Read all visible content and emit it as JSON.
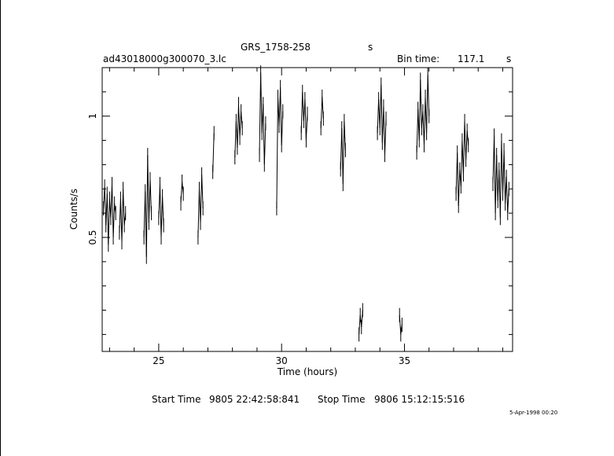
{
  "header": {
    "object": "GRS_1758-258",
    "object_unit": "s",
    "file": "ad43018000g300070_3.lc",
    "bin_label": "Bin time:",
    "bin_value": "117.1",
    "bin_unit": "s"
  },
  "footer": {
    "start_label": "Start Time",
    "start_value": "9805 22:42:58:841",
    "stop_label": "Stop Time",
    "stop_value": "9806 15:12:15:516",
    "stamp": "5-Apr-1998 00:20"
  },
  "chart_data": {
    "type": "line",
    "xlabel": "Time (hours)",
    "ylabel": "Counts/s",
    "xlim": [
      22.7,
      39.4
    ],
    "ylim": [
      0.03,
      1.2
    ],
    "x_ticks": [
      25,
      30,
      35
    ],
    "y_ticks": [
      0.5,
      1
    ],
    "series": [
      {
        "segments": [
          {
            "x": [
              22.75,
              22.8,
              22.85,
              22.9,
              22.95,
              23.0,
              23.05,
              23.1,
              23.15,
              23.2,
              23.25
            ],
            "y": [
              0.62,
              0.71,
              0.55,
              0.68,
              0.47,
              0.66,
              0.58,
              0.72,
              0.5,
              0.64,
              0.6
            ]
          },
          {
            "x": [
              23.4,
              23.45,
              23.5,
              23.55,
              23.6,
              23.65
            ],
            "y": [
              0.52,
              0.66,
              0.48,
              0.7,
              0.55,
              0.6
            ]
          },
          {
            "x": [
              24.4,
              24.45,
              24.5,
              24.55,
              24.6,
              24.65,
              24.7
            ],
            "y": [
              0.5,
              0.69,
              0.42,
              0.84,
              0.56,
              0.74,
              0.6
            ]
          },
          {
            "x": [
              25.0,
              25.05,
              25.1,
              25.15,
              25.2
            ],
            "y": [
              0.58,
              0.72,
              0.5,
              0.67,
              0.55
            ]
          },
          {
            "x": [
              25.9,
              25.95,
              26.0
            ],
            "y": [
              0.64,
              0.73,
              0.68
            ]
          },
          {
            "x": [
              26.6,
              26.65,
              26.7,
              26.75,
              26.8
            ],
            "y": [
              0.5,
              0.7,
              0.56,
              0.76,
              0.62
            ]
          },
          {
            "x": [
              27.2,
              27.25
            ],
            "y": [
              0.77,
              0.93
            ]
          },
          {
            "x": [
              28.1,
              28.15,
              28.2,
              28.25,
              28.3,
              28.35,
              28.4
            ],
            "y": [
              0.83,
              0.98,
              0.87,
              1.05,
              0.91,
              1.02,
              0.95
            ]
          },
          {
            "x": [
              29.1,
              29.15,
              29.2,
              29.25,
              29.3,
              29.35
            ],
            "y": [
              0.84,
              1.18,
              0.93,
              1.05,
              0.8,
              0.97
            ]
          },
          {
            "x": [
              29.8,
              29.85,
              29.9,
              29.95,
              30.0,
              30.05
            ],
            "y": [
              0.62,
              1.08,
              0.96,
              1.12,
              0.88,
              1.02
            ]
          },
          {
            "x": [
              30.8,
              30.85,
              30.9,
              30.95,
              31.0,
              31.05
            ],
            "y": [
              0.93,
              1.1,
              0.98,
              1.07,
              0.9,
              1.01
            ]
          },
          {
            "x": [
              31.6,
              31.65,
              31.7
            ],
            "y": [
              0.95,
              1.08,
              0.99
            ]
          },
          {
            "x": [
              32.4,
              32.45,
              32.5,
              32.55,
              32.6
            ],
            "y": [
              0.78,
              0.95,
              0.72,
              0.98,
              0.86
            ]
          },
          {
            "x": [
              33.15,
              33.2,
              33.25,
              33.3
            ],
            "y": [
              0.1,
              0.18,
              0.13,
              0.2
            ]
          },
          {
            "x": [
              33.9,
              33.95,
              34.0,
              34.05,
              34.1,
              34.15,
              34.2,
              34.25
            ],
            "y": [
              0.93,
              1.07,
              0.95,
              1.13,
              0.89,
              1.04,
              0.84,
              0.99
            ]
          },
          {
            "x": [
              34.8,
              34.85,
              34.9
            ],
            "y": [
              0.18,
              0.1,
              0.14
            ]
          },
          {
            "x": [
              35.5,
              35.55,
              35.6,
              35.65,
              35.7,
              35.75,
              35.8,
              35.85,
              35.9,
              35.95,
              36.0
            ],
            "y": [
              0.85,
              1.03,
              0.9,
              1.15,
              0.95,
              1.02,
              0.88,
              1.08,
              0.93,
              1.17,
              1.0
            ]
          },
          {
            "x": [
              37.1,
              37.15,
              37.2,
              37.25,
              37.3,
              37.35,
              37.4,
              37.45,
              37.5,
              37.55,
              37.6
            ],
            "y": [
              0.68,
              0.85,
              0.63,
              0.78,
              0.71,
              0.9,
              0.76,
              0.98,
              0.82,
              0.94,
              0.88
            ]
          },
          {
            "x": [
              38.6,
              38.65,
              38.7,
              38.75,
              38.8,
              38.85,
              38.9,
              38.95,
              39.0,
              39.05,
              39.1,
              39.15,
              39.2,
              39.25
            ],
            "y": [
              0.72,
              0.92,
              0.6,
              0.84,
              0.65,
              0.78,
              0.58,
              0.9,
              0.68,
              0.86,
              0.64,
              0.75,
              0.6,
              0.7
            ]
          }
        ]
      }
    ]
  }
}
